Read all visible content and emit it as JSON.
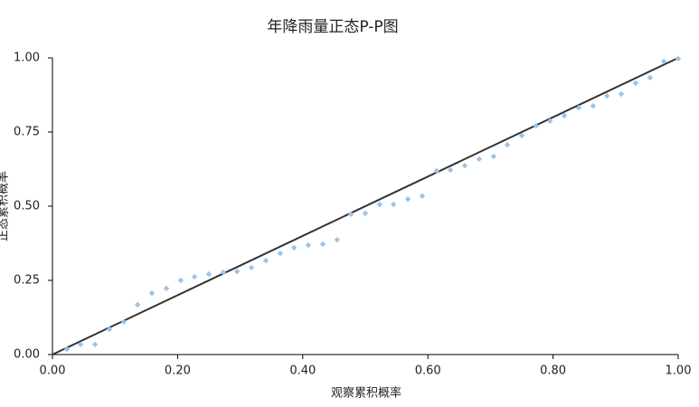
{
  "chart_data": {
    "type": "scatter",
    "title": "年降雨量正态P-P图",
    "x_label": "观察累积概率",
    "y_label": "正态累积概率",
    "series": [
      {
        "name": "P-P",
        "color": "#9dc3e6",
        "x": [
          0.023,
          0.045,
          0.068,
          0.091,
          0.114,
          0.136,
          0.159,
          0.182,
          0.205,
          0.227,
          0.25,
          0.273,
          0.295,
          0.318,
          0.341,
          0.364,
          0.386,
          0.409,
          0.432,
          0.455,
          0.477,
          0.5,
          0.523,
          0.545,
          0.568,
          0.591,
          0.614,
          0.636,
          0.659,
          0.682,
          0.705,
          0.727,
          0.75,
          0.773,
          0.795,
          0.818,
          0.841,
          0.864,
          0.886,
          0.909,
          0.932,
          0.955,
          0.977,
          1
        ],
        "values": [
          0.018,
          0.034,
          0.034,
          0.085,
          0.11,
          0.168,
          0.207,
          0.223,
          0.25,
          0.262,
          0.271,
          0.277,
          0.28,
          0.293,
          0.317,
          0.341,
          0.36,
          0.369,
          0.372,
          0.387,
          0.473,
          0.476,
          0.506,
          0.506,
          0.524,
          0.534,
          0.619,
          0.622,
          0.637,
          0.659,
          0.668,
          0.707,
          0.738,
          0.771,
          0.787,
          0.805,
          0.832,
          0.838,
          0.872,
          0.878,
          0.915,
          0.933,
          0.988,
          0.997
        ]
      }
    ],
    "reference_line": {
      "color": "#333333",
      "x": [
        0,
        1
      ],
      "y": [
        0,
        1
      ]
    },
    "xlim": [
      0,
      1
    ],
    "ylim": [
      0,
      1
    ],
    "xticks": [
      {
        "value": 0,
        "label": "0.00"
      },
      {
        "value": 0.2,
        "label": "0.20"
      },
      {
        "value": 0.4,
        "label": "0.40"
      },
      {
        "value": 0.6,
        "label": "0.60"
      },
      {
        "value": 0.8,
        "label": "0.80"
      },
      {
        "value": 1,
        "label": "1.00"
      }
    ],
    "yticks": [
      {
        "value": 0,
        "label": "0.00"
      },
      {
        "value": 0.25,
        "label": "0.25"
      },
      {
        "value": 0.5,
        "label": "0.50"
      },
      {
        "value": 0.75,
        "label": "0.75"
      },
      {
        "value": 1,
        "label": "1.00"
      }
    ]
  }
}
